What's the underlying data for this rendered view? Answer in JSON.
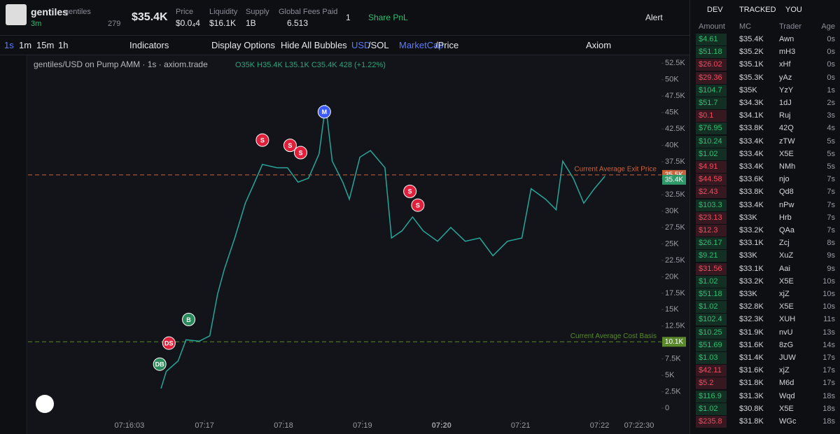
{
  "header": {
    "token_name": "gentiles",
    "token_ticker": "gentiles",
    "age": "3m",
    "holders": "279",
    "market_cap": "$35.4K",
    "price_label": "Price",
    "price": "$0.0₄4",
    "liquidity_label": "Liquidity",
    "liquidity": "$16.1K",
    "supply_label": "Supply",
    "supply": "1B",
    "fees_label": "Global Fees Paid",
    "fees": "6.513",
    "watchers": "1",
    "share": "Share PnL",
    "alert": "Alert"
  },
  "toolbar": {
    "intervals": [
      "1s",
      "1m",
      "15m",
      "1h"
    ],
    "indicators": "Indicators",
    "display_options": "Display Options",
    "hide_bubbles": "Hide All Bubbles",
    "usd": "USD",
    "sol": "/SOL",
    "marketcap": "MarketCap",
    "price": "/Price",
    "axiom": "Axiom"
  },
  "chart_data": {
    "type": "line",
    "legend_title": "gentiles/USD on Pump AMM · 1s · axiom.trade",
    "legend_ohlc": "O35K H35.4K L35.1K C35.4K 428 (+1.22%)",
    "color": "#26a69a",
    "x": [
      27,
      31,
      40,
      46,
      56,
      64,
      70,
      75,
      83,
      91,
      97,
      104,
      115,
      123,
      131,
      139,
      147,
      152,
      157,
      165,
      170,
      178,
      186,
      197,
      202,
      210,
      218,
      226,
      237,
      247,
      258,
      269,
      279,
      290,
      301,
      308,
      319,
      327,
      332,
      340,
      348,
      356,
      364
    ],
    "values": [
      3000,
      5600,
      7200,
      10400,
      10200,
      11000,
      17400,
      21100,
      25900,
      31200,
      33900,
      37100,
      36600,
      36600,
      34400,
      35000,
      38700,
      46200,
      37600,
      34400,
      31800,
      38200,
      39200,
      36600,
      25900,
      27000,
      29100,
      27000,
      25400,
      27500,
      25400,
      25900,
      23200,
      25400,
      25900,
      33400,
      31800,
      30200,
      37600,
      35000,
      31200,
      33400,
      35300
    ],
    "xlim": [
      -74,
      407
    ],
    "xticks": [
      {
        "value": 3,
        "label": "07:16:03"
      },
      {
        "value": 60,
        "label": "07:17"
      },
      {
        "value": 120,
        "label": "07:18"
      },
      {
        "value": 180,
        "label": "07:19"
      },
      {
        "value": 240,
        "label": "07:20"
      },
      {
        "value": 300,
        "label": "07:21"
      },
      {
        "value": 360,
        "label": "07:22"
      },
      {
        "value": 390,
        "label": "07:22:30"
      }
    ],
    "ylim": [
      -1800,
      53600
    ],
    "yticks": [
      0,
      {
        "value": 2500,
        "label": "2.5K"
      },
      {
        "value": 5000,
        "label": "5K"
      },
      {
        "value": 7500,
        "label": "7.5K"
      },
      {
        "value": 10000,
        "label": "10K"
      },
      {
        "value": 12500,
        "label": "12.5K"
      },
      {
        "value": 15000,
        "label": "15K"
      },
      {
        "value": 17500,
        "label": "17.5K"
      },
      {
        "value": 20000,
        "label": "20K"
      },
      {
        "value": 22500,
        "label": "22.5K"
      },
      {
        "value": 25000,
        "label": "25K"
      },
      {
        "value": 27500,
        "label": "27.5K"
      },
      {
        "value": 30000,
        "label": "30K"
      },
      {
        "value": 32500,
        "label": "32.5K"
      },
      {
        "value": 35000,
        "label": "35K"
      },
      {
        "value": 37500,
        "label": "37.5K"
      },
      {
        "value": 40000,
        "label": "40K"
      },
      {
        "value": 42500,
        "label": "42.5K"
      },
      {
        "value": 45000,
        "label": "45K"
      },
      {
        "value": 47500,
        "label": "47.5K"
      },
      {
        "value": 50000,
        "label": "50K"
      },
      {
        "value": 52500,
        "label": "52.5K"
      }
    ],
    "lines": [
      {
        "label": "Current Average Exit Price",
        "value": 35500,
        "value_label": "35.5K",
        "color": "#c8643c"
      },
      {
        "label": "Current Average Cost Basis",
        "value": 10100,
        "value_label": "10.1K",
        "color": "#5a8a2a"
      }
    ],
    "price_badge": {
      "value": 35400,
      "label": "35.4K",
      "color": "#2e9a6a"
    },
    "markers": [
      {
        "label": "DB",
        "x": 26,
        "y": 6700,
        "color": "#2b8a5a"
      },
      {
        "label": "DS",
        "x": 33,
        "y": 9900,
        "color": "#e0203a"
      },
      {
        "label": "B",
        "x": 48,
        "y": 13500,
        "color": "#2b8a5a"
      },
      {
        "label": "S",
        "x": 104,
        "y": 40800,
        "color": "#e0203a"
      },
      {
        "label": "S",
        "x": 125,
        "y": 40000,
        "color": "#e0203a"
      },
      {
        "label": "S",
        "x": 133,
        "y": 38900,
        "color": "#e0203a"
      },
      {
        "label": "M",
        "x": 151,
        "y": 45100,
        "color": "#3d5afe"
      },
      {
        "label": "S",
        "x": 216,
        "y": 33000,
        "color": "#e0203a"
      },
      {
        "label": "S",
        "x": 222,
        "y": 30900,
        "color": "#e0203a"
      }
    ]
  },
  "trades": {
    "tabs": [
      "DEV",
      "TRACKED",
      "YOU"
    ],
    "columns": [
      "Amount",
      "MC",
      "Trader",
      "Age"
    ],
    "rows": [
      [
        "$4.61",
        "$35.4K",
        "Awn",
        "0s"
      ],
      [
        "$51.18",
        "$35.2K",
        "mH3",
        "0s"
      ],
      [
        "$26.02",
        "$35.1K",
        "xHf",
        "0s"
      ],
      [
        "$29.36",
        "$35.3K",
        "yAz",
        "0s"
      ],
      [
        "$104.7",
        "$35K",
        "YzY",
        "1s"
      ],
      [
        "$51.7",
        "$34.3K",
        "1dJ",
        "2s"
      ],
      [
        "$0.1",
        "$34.1K",
        "Ruj",
        "3s"
      ],
      [
        "$76.95",
        "$33.8K",
        "42Q",
        "4s"
      ],
      [
        "$10.24",
        "$33.4K",
        "zTW",
        "5s"
      ],
      [
        "$1.02",
        "$33.4K",
        "X5E",
        "5s"
      ],
      [
        "$4.91",
        "$33.4K",
        "NMh",
        "5s"
      ],
      [
        "$44.58",
        "$33.6K",
        "njo",
        "7s"
      ],
      [
        "$2.43",
        "$33.8K",
        "Qd8",
        "7s"
      ],
      [
        "$103.3",
        "$33.4K",
        "nPw",
        "7s"
      ],
      [
        "$23.13",
        "$33K",
        "Hrb",
        "7s"
      ],
      [
        "$12.3",
        "$33.2K",
        "QAa",
        "7s"
      ],
      [
        "$26.17",
        "$33.1K",
        "Zcj",
        "8s"
      ],
      [
        "$9.21",
        "$33K",
        "XuZ",
        "9s"
      ],
      [
        "$31.56",
        "$33.1K",
        "Aai",
        "9s"
      ],
      [
        "$1.02",
        "$33.2K",
        "X5E",
        "10s"
      ],
      [
        "$51.18",
        "$33K",
        "xjZ",
        "10s"
      ],
      [
        "$1.02",
        "$32.8K",
        "X5E",
        "10s"
      ],
      [
        "$102.4",
        "$32.3K",
        "XUH",
        "11s"
      ],
      [
        "$10.25",
        "$31.9K",
        "nvU",
        "13s"
      ],
      [
        "$51.69",
        "$31.6K",
        "8zG",
        "14s"
      ],
      [
        "$1.03",
        "$31.4K",
        "JUW",
        "17s"
      ],
      [
        "$42.11",
        "$31.6K",
        "xjZ",
        "17s"
      ],
      [
        "$5.2",
        "$31.8K",
        "M6d",
        "17s"
      ],
      [
        "$116.9",
        "$31.3K",
        "Wqd",
        "18s"
      ],
      [
        "$1.02",
        "$30.8K",
        "X5E",
        "18s"
      ],
      [
        "$235.8",
        "$31.8K",
        "WGc",
        "18s"
      ]
    ],
    "buy": [
      true,
      true,
      false,
      false,
      true,
      true,
      false,
      true,
      true,
      true,
      false,
      false,
      false,
      true,
      false,
      false,
      true,
      true,
      false,
      true,
      true,
      true,
      true,
      true,
      true,
      true,
      false,
      false,
      true,
      true,
      false
    ]
  }
}
